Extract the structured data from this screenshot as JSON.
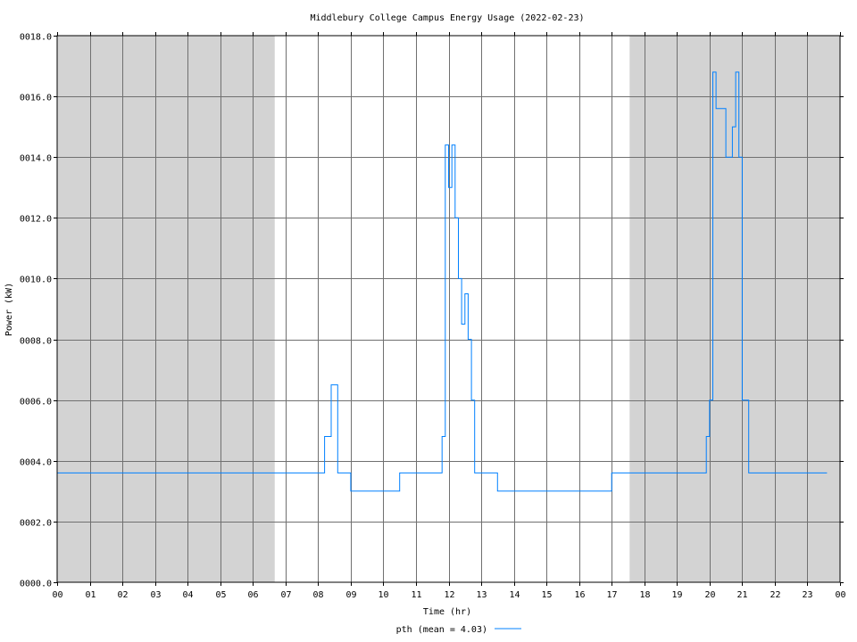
{
  "chart_data": {
    "type": "line",
    "title": "Middlebury College Campus Energy Usage (2022-02-23)",
    "xlabel": "Time (hr)",
    "ylabel": "Power (kW)",
    "xlim": [
      0,
      24
    ],
    "ylim": [
      0,
      18
    ],
    "x_ticks": [
      0,
      1,
      2,
      3,
      4,
      5,
      6,
      7,
      8,
      9,
      10,
      11,
      12,
      13,
      14,
      15,
      16,
      17,
      18,
      19,
      20,
      21,
      22,
      23,
      24
    ],
    "x_tick_labels": [
      "00",
      "01",
      "02",
      "03",
      "04",
      "05",
      "06",
      "07",
      "08",
      "09",
      "10",
      "11",
      "12",
      "13",
      "14",
      "15",
      "16",
      "17",
      "18",
      "19",
      "20",
      "21",
      "22",
      "23",
      "00"
    ],
    "y_ticks": [
      0,
      2,
      4,
      6,
      8,
      10,
      12,
      14,
      16,
      18
    ],
    "y_tick_labels": [
      "0000.0",
      "0002.0",
      "0004.0",
      "0006.0",
      "0008.0",
      "0010.0",
      "0012.0",
      "0014.0",
      "0016.0",
      "0018.0"
    ],
    "grid": true,
    "shaded_ranges": [
      [
        0,
        6.67
      ],
      [
        17.55,
        24
      ]
    ],
    "shade_color": "#d3d3d3",
    "legend": {
      "label": "pth (mean = 4.03)",
      "placement": "bottom-center"
    },
    "series": [
      {
        "name": "pth",
        "color": "#0080ff",
        "x": [
          0,
          0.5,
          1,
          1.5,
          2,
          2.5,
          3,
          3.5,
          4,
          4.5,
          5,
          5.5,
          6,
          6.5,
          6.7,
          7,
          7.5,
          8,
          8.2,
          8.4,
          8.6,
          9,
          9.5,
          10,
          10.5,
          11,
          11.5,
          11.8,
          11.9,
          12,
          12.1,
          12.2,
          12.3,
          12.4,
          12.5,
          12.6,
          12.7,
          12.8,
          13,
          13.5,
          14,
          14.5,
          15,
          15.5,
          16,
          16.5,
          17,
          17.5,
          18,
          18.5,
          19,
          19.3,
          19.6,
          19.9,
          20,
          20.1,
          20.2,
          20.3,
          20.5,
          20.7,
          20.8,
          20.9,
          21,
          21.2,
          21.5,
          22,
          22.5,
          23,
          23.5,
          23.6
        ],
        "y": [
          3.6,
          3.6,
          3.6,
          3.6,
          3.6,
          3.6,
          3.6,
          3.6,
          3.6,
          3.6,
          3.6,
          3.6,
          3.6,
          3.6,
          3.6,
          3.6,
          3.6,
          3.6,
          4.8,
          6.5,
          3.6,
          3.0,
          3.0,
          3.0,
          3.6,
          3.6,
          3.6,
          4.8,
          14.4,
          13.0,
          14.4,
          12.0,
          10.0,
          8.5,
          9.5,
          8.0,
          6.0,
          3.6,
          3.6,
          3.0,
          3.0,
          3.0,
          3.0,
          3.0,
          3.0,
          3.0,
          3.6,
          3.6,
          3.6,
          3.6,
          3.6,
          3.6,
          3.6,
          4.8,
          6.0,
          16.8,
          15.6,
          15.6,
          14.0,
          15.0,
          16.8,
          14.0,
          6.0,
          3.6,
          3.6,
          3.6,
          3.6,
          3.6,
          3.6,
          3.6
        ]
      }
    ]
  }
}
